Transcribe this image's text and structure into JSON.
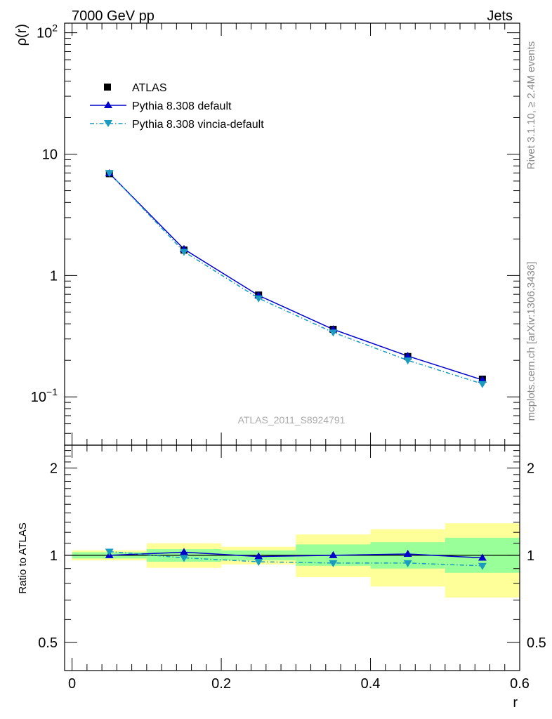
{
  "header": {
    "left": "7000 GeV pp",
    "right": "Jets"
  },
  "side_labels": {
    "rivet": "Rivet 3.1.10, ≥ 2.4M events",
    "mcplots": "mcplots.cern.ch [arXiv:1306.3436]"
  },
  "watermark": "ATLAS_2011_S8924791",
  "legend": {
    "atlas": "ATLAS",
    "default": "Pythia 8.308 default",
    "vincia": "Pythia 8.308 vincia-default"
  },
  "colors": {
    "atlas": "#000000",
    "default": "#0000cc",
    "vincia": "#1a9bbf",
    "band_outer": "#ffff99",
    "band_inner": "#99ff99"
  },
  "chart_data": [
    {
      "type": "line",
      "panel": "main",
      "ylabel": "ρ(r)",
      "yscale": "log",
      "ylim": [
        0.04,
        120
      ],
      "xlim": [
        -0.01,
        0.6
      ],
      "y_ticks": [
        {
          "value": 100,
          "base": "10",
          "exp": "2"
        },
        {
          "value": 10,
          "label": "10"
        },
        {
          "value": 1,
          "label": "1"
        },
        {
          "value": 0.1,
          "base": "10",
          "exp": "−1"
        }
      ],
      "x": [
        0.05,
        0.15,
        0.25,
        0.35,
        0.45,
        0.55
      ],
      "series": [
        {
          "key": "atlas",
          "marker": "square",
          "values": [
            6.9,
            1.62,
            0.69,
            0.36,
            0.215,
            0.14
          ]
        },
        {
          "key": "default",
          "marker": "triangle-up",
          "line": "solid",
          "values": [
            6.95,
            1.65,
            0.685,
            0.36,
            0.217,
            0.138
          ]
        },
        {
          "key": "vincia",
          "marker": "triangle-down",
          "line": "dash-dot",
          "values": [
            7.0,
            1.57,
            0.65,
            0.34,
            0.2,
            0.128
          ]
        }
      ]
    },
    {
      "type": "line",
      "panel": "ratio",
      "ylabel": "Ratio to ATLAS",
      "xlabel": "r",
      "yscale": "log",
      "ylim": [
        0.4,
        2.4
      ],
      "xlim": [
        -0.01,
        0.6
      ],
      "y_ticks": [
        {
          "value": 2,
          "label": "2"
        },
        {
          "value": 1,
          "label": "1"
        },
        {
          "value": 0.5,
          "label": "0.5"
        }
      ],
      "x_ticks": [
        {
          "value": 0,
          "label": "0"
        },
        {
          "value": 0.2,
          "label": "0.2"
        },
        {
          "value": 0.4,
          "label": "0.4"
        },
        {
          "value": 0.6,
          "label": "0.6"
        }
      ],
      "bands": [
        {
          "x0": 0.0,
          "x1": 0.1,
          "outer": [
            0.96,
            1.04
          ],
          "inner": [
            0.975,
            1.025
          ]
        },
        {
          "x0": 0.1,
          "x1": 0.2,
          "outer": [
            0.905,
            1.1
          ],
          "inner": [
            0.95,
            1.05
          ]
        },
        {
          "x0": 0.2,
          "x1": 0.3,
          "outer": [
            0.93,
            1.07
          ],
          "inner": [
            0.96,
            1.04
          ]
        },
        {
          "x0": 0.3,
          "x1": 0.4,
          "outer": [
            0.84,
            1.18
          ],
          "inner": [
            0.92,
            1.09
          ]
        },
        {
          "x0": 0.4,
          "x1": 0.5,
          "outer": [
            0.78,
            1.23
          ],
          "inner": [
            0.9,
            1.11
          ]
        },
        {
          "x0": 0.5,
          "x1": 0.6,
          "outer": [
            0.715,
            1.29
          ],
          "inner": [
            0.87,
            1.15
          ]
        }
      ],
      "x": [
        0.05,
        0.15,
        0.25,
        0.35,
        0.45,
        0.55
      ],
      "series": [
        {
          "key": "default",
          "marker": "triangle-up",
          "line": "solid",
          "values": [
            1.0,
            1.025,
            0.99,
            1.0,
            1.01,
            0.98
          ]
        },
        {
          "key": "vincia",
          "marker": "triangle-down",
          "line": "dash-dot",
          "values": [
            1.03,
            0.98,
            0.95,
            0.94,
            0.94,
            0.92
          ]
        }
      ]
    }
  ]
}
